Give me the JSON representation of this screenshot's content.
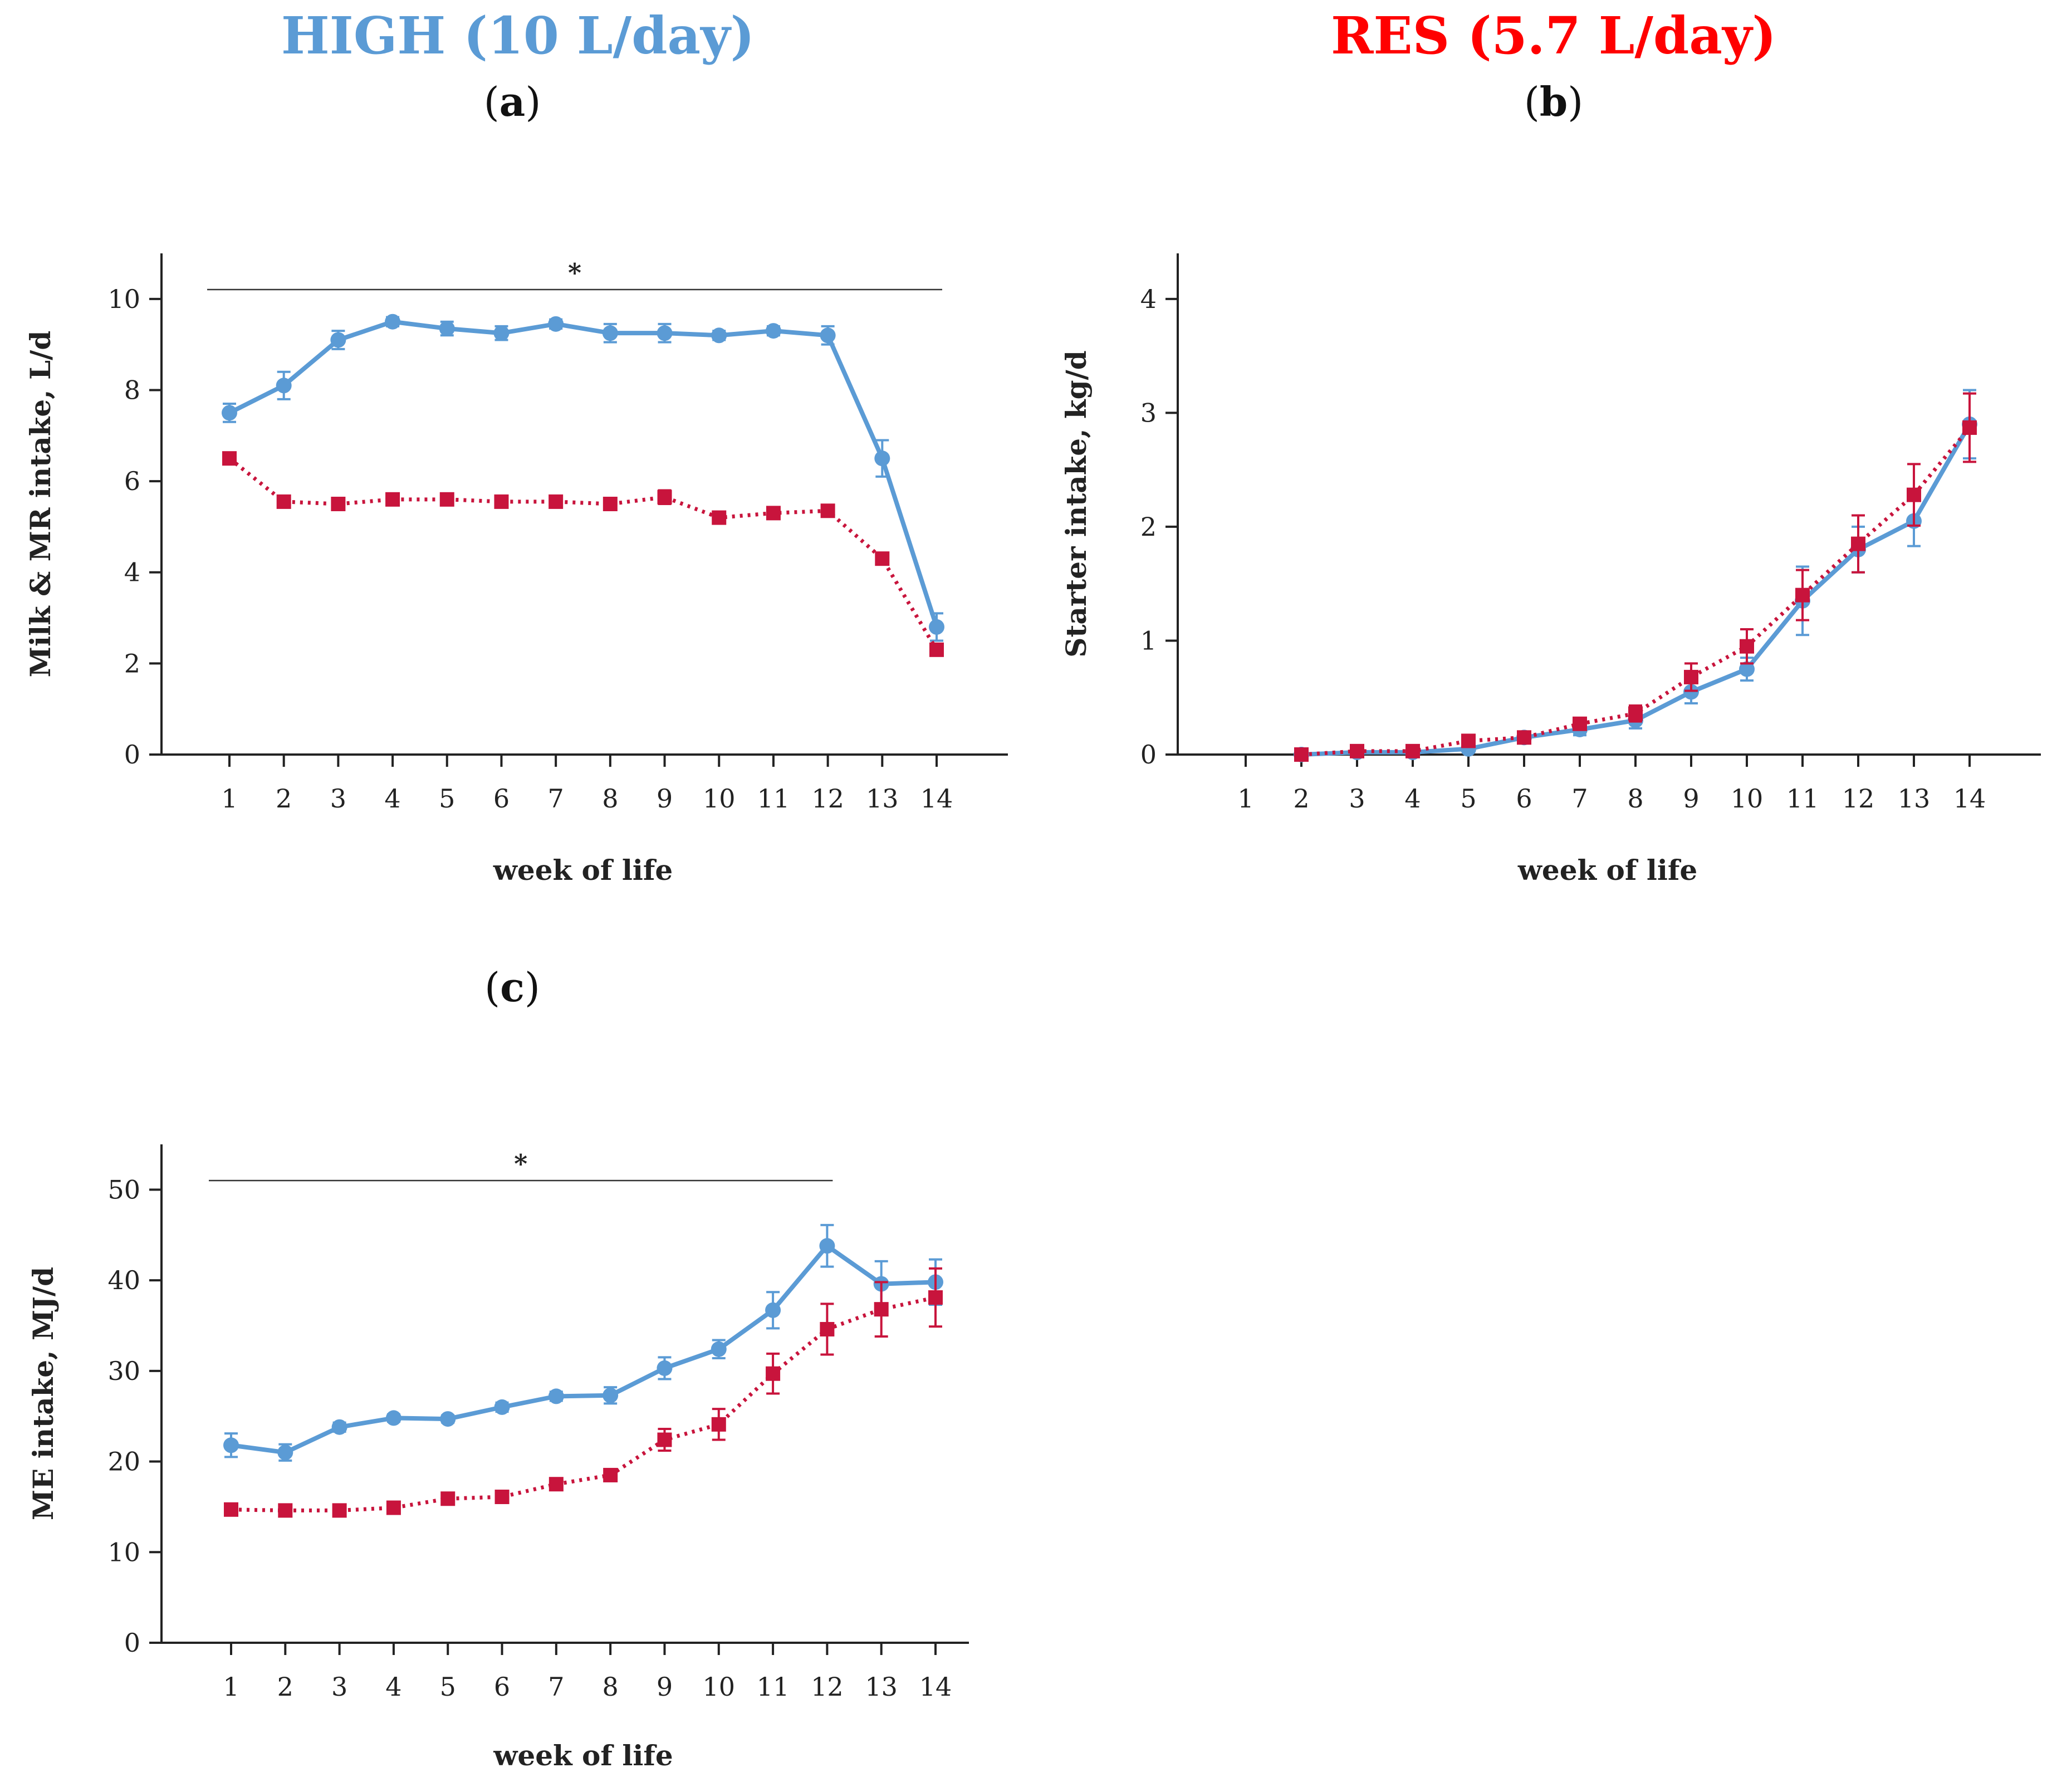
{
  "legend": {
    "high": {
      "label": "HIGH (10 L/day)",
      "color": "#5b9bd5"
    },
    "res": {
      "label": "RES (5.7 L/day)",
      "color": "#ff0000"
    }
  },
  "series_colors": {
    "high": "#5b9bd5",
    "res": "#c8143c"
  },
  "panels": {
    "a": "a",
    "b": "b",
    "c": "c"
  },
  "chart_data": [
    {
      "id": "a",
      "type": "line",
      "ylabel": "Milk & MR intake, L/d",
      "xlabel": "week of life",
      "x": [
        1,
        2,
        3,
        4,
        5,
        6,
        7,
        8,
        9,
        10,
        11,
        12,
        13,
        14
      ],
      "ylim": [
        0,
        11
      ],
      "yticks": [
        0,
        2,
        4,
        6,
        8,
        10
      ],
      "annotation": {
        "text": "*",
        "from_week": 1,
        "to_week": 14
      },
      "series": [
        {
          "name": "HIGH (10 L/day)",
          "key": "high",
          "values": [
            7.5,
            8.1,
            9.1,
            9.5,
            9.35,
            9.25,
            9.45,
            9.25,
            9.25,
            9.2,
            9.3,
            9.2,
            6.5,
            2.8
          ],
          "errors": [
            0.2,
            0.3,
            0.2,
            0.1,
            0.15,
            0.15,
            0.1,
            0.2,
            0.2,
            0.1,
            0.1,
            0.2,
            0.4,
            0.3
          ]
        },
        {
          "name": "RES (5.7 L/day)",
          "key": "res",
          "values": [
            6.5,
            5.55,
            5.5,
            5.6,
            5.6,
            5.55,
            5.55,
            5.5,
            5.65,
            5.2,
            5.3,
            5.35,
            4.3,
            2.3
          ],
          "errors": [
            0.1,
            0.1,
            0.1,
            0.1,
            0.1,
            0.1,
            0.1,
            0.1,
            0.15,
            0.1,
            0.1,
            0.1,
            0.1,
            0.1
          ]
        }
      ]
    },
    {
      "id": "b",
      "type": "line",
      "ylabel": "Starter intake, kg/d",
      "xlabel": "week of life",
      "x": [
        1,
        2,
        3,
        4,
        5,
        6,
        7,
        8,
        9,
        10,
        11,
        12,
        13,
        14
      ],
      "ylim": [
        0,
        4.4
      ],
      "yticks": [
        0,
        1,
        2,
        3,
        4
      ],
      "series": [
        {
          "name": "HIGH (10 L/day)",
          "key": "high",
          "x": [
            2,
            3,
            4,
            5,
            6,
            7,
            8,
            9,
            10,
            11,
            12,
            13,
            14
          ],
          "values": [
            0,
            0.02,
            0.02,
            0.05,
            0.15,
            0.22,
            0.3,
            0.55,
            0.75,
            1.35,
            1.8,
            2.05,
            2.9
          ],
          "errors": [
            0.01,
            0.01,
            0.01,
            0.02,
            0.03,
            0.05,
            0.07,
            0.1,
            0.1,
            0.3,
            0.2,
            0.22,
            0.3
          ]
        },
        {
          "name": "RES (5.7 L/day)",
          "key": "res",
          "x": [
            2,
            3,
            4,
            5,
            6,
            7,
            8,
            9,
            10,
            11,
            12,
            13,
            14
          ],
          "values": [
            0,
            0.03,
            0.03,
            0.12,
            0.15,
            0.27,
            0.36,
            0.68,
            0.95,
            1.4,
            1.85,
            2.28,
            2.87
          ],
          "errors": [
            0.01,
            0.01,
            0.01,
            0.03,
            0.03,
            0.05,
            0.07,
            0.12,
            0.15,
            0.22,
            0.25,
            0.27,
            0.3
          ]
        }
      ]
    },
    {
      "id": "c",
      "type": "line",
      "ylabel": "ME intake, MJ/d",
      "xlabel": "week of life",
      "x": [
        1,
        2,
        3,
        4,
        5,
        6,
        7,
        8,
        9,
        10,
        11,
        12,
        13,
        14
      ],
      "ylim": [
        0,
        55
      ],
      "yticks": [
        0,
        10,
        20,
        30,
        40,
        50
      ],
      "annotation": {
        "text": "*",
        "from_week": 1,
        "to_week": 12
      },
      "series": [
        {
          "name": "HIGH (10 L/day)",
          "key": "high",
          "values": [
            21.8,
            21.0,
            23.8,
            24.8,
            24.7,
            26.0,
            27.2,
            27.3,
            30.3,
            32.4,
            36.7,
            43.8,
            39.6,
            39.8
          ],
          "errors": [
            1.3,
            0.9,
            0.5,
            0.4,
            0.4,
            0.5,
            0.5,
            0.9,
            1.2,
            1.0,
            2.0,
            2.3,
            2.5,
            2.5
          ]
        },
        {
          "name": "RES (5.7 L/day)",
          "key": "res",
          "values": [
            14.7,
            14.6,
            14.6,
            14.9,
            15.9,
            16.1,
            17.5,
            18.5,
            22.4,
            24.1,
            29.7,
            34.6,
            36.8,
            38.1
          ],
          "errors": [
            0.4,
            0.3,
            0.3,
            0.4,
            0.4,
            0.4,
            0.4,
            0.4,
            1.2,
            1.7,
            2.2,
            2.8,
            3.0,
            3.2
          ]
        }
      ]
    }
  ]
}
